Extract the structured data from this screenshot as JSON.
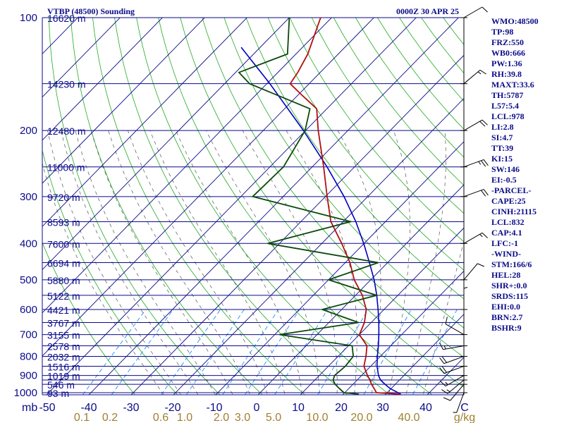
{
  "header": {
    "station": "VTBP (48500) Sounding",
    "time": "0000Z 30 APR 25"
  },
  "indices": [
    "WMO:48500",
    "TP:98",
    "FRZ:550",
    "WB0:666",
    "PW:1.36",
    "RH:39.8",
    "MAXT:33.6",
    "TH:5787",
    "L57:5.4",
    "LCL:978",
    "LI:2.8",
    "SI:4.7",
    "TT:39",
    "KI:15",
    "SW:146",
    "EI:-0.5",
    "-PARCEL-",
    "CAPE:25",
    "CINH:21115",
    "LCL:832",
    "CAP:4.1",
    "LFC:-1",
    "-WIND-",
    "STM:166/6",
    "HEL:28",
    "SHR+:0.0",
    "SRDS:115",
    "EHI:0.0",
    "BRN:2.7",
    "BSHR:9"
  ],
  "colors": {
    "isobar": "#0b0b8a",
    "isotherm": "#0b0b8a",
    "dry_adiabat": "#22aa22",
    "mixing_ratio": "#1e90ff",
    "moist_adiabat": "#555555",
    "temperature": "#b01010",
    "dewpoint": "#0b4a0b",
    "parcel": "#0000c0",
    "text_blue": "#0b0b8a",
    "text_tan": "#a08030"
  },
  "chart_data": {
    "type": "skew-t",
    "pressure_axis_title": "mb",
    "pressure_labels": [
      100,
      200,
      300,
      400,
      500,
      600,
      700,
      800,
      900,
      1000
    ],
    "isobars": [
      100,
      150,
      200,
      250,
      300,
      350,
      400,
      450,
      500,
      550,
      600,
      650,
      700,
      750,
      800,
      850,
      900,
      925,
      950,
      1000
    ],
    "temperature_ticks": [
      "-50",
      "-40",
      "-30",
      "-20",
      "-10",
      "0",
      "10",
      "20",
      "30",
      "40",
      "C"
    ],
    "mixing_ratio_ticks": [
      "0.1",
      "0.2",
      "0.6",
      "1.0",
      "2.0",
      "3.0",
      "5.0",
      "10.0",
      "20.0",
      "40.0",
      "g/kg"
    ],
    "height_labels": [
      {
        "p": 100,
        "label": "16620 m"
      },
      {
        "p": 150,
        "label": "14230 m"
      },
      {
        "p": 200,
        "label": "12480 m"
      },
      {
        "p": 250,
        "label": "11000 m"
      },
      {
        "p": 300,
        "label": "9720 m"
      },
      {
        "p": 350,
        "label": "8593 m"
      },
      {
        "p": 400,
        "label": "7600 m"
      },
      {
        "p": 450,
        "label": "6694 m"
      },
      {
        "p": 500,
        "label": "5880 m"
      },
      {
        "p": 550,
        "label": "5122 m"
      },
      {
        "p": 600,
        "label": "4421 m"
      },
      {
        "p": 650,
        "label": "3767 m"
      },
      {
        "p": 700,
        "label": "3155 m"
      },
      {
        "p": 750,
        "label": "2578 m"
      },
      {
        "p": 800,
        "label": "2032 m"
      },
      {
        "p": 850,
        "label": "1516 m"
      },
      {
        "p": 900,
        "label": "1019 m"
      },
      {
        "p": 950,
        "label": "546 m"
      },
      {
        "p": 1000,
        "label": "93 m"
      }
    ],
    "temperature_profile": [
      [
        1009,
        33.6
      ],
      [
        1000,
        27.5
      ],
      [
        975,
        26.0
      ],
      [
        950,
        24.4
      ],
      [
        925,
        23.0
      ],
      [
        900,
        21.4
      ],
      [
        850,
        18.4
      ],
      [
        800,
        16.6
      ],
      [
        750,
        14.4
      ],
      [
        700,
        10.0
      ],
      [
        650,
        8.4
      ],
      [
        600,
        5.8
      ],
      [
        550,
        1.6
      ],
      [
        500,
        -3.9
      ],
      [
        450,
        -8.9
      ],
      [
        400,
        -15.3
      ],
      [
        350,
        -22.9
      ],
      [
        300,
        -29.6
      ],
      [
        250,
        -37.3
      ],
      [
        200,
        -47.0
      ],
      [
        175,
        -52.4
      ],
      [
        160,
        -59.5
      ],
      [
        150,
        -64.5
      ],
      [
        140,
        -65.3
      ],
      [
        125,
        -67.2
      ],
      [
        100,
        -72.6
      ]
    ],
    "dewpoint_profile": [
      [
        1009,
        23.7
      ],
      [
        1000,
        19.8
      ],
      [
        975,
        17.8
      ],
      [
        950,
        15.8
      ],
      [
        925,
        14.3
      ],
      [
        900,
        13.6
      ],
      [
        850,
        14.0
      ],
      [
        800,
        13.6
      ],
      [
        750,
        10.9
      ],
      [
        700,
        -8.9
      ],
      [
        650,
        7.0
      ],
      [
        600,
        -4.6
      ],
      [
        550,
        5.0
      ],
      [
        500,
        -10.0
      ],
      [
        450,
        -2.2
      ],
      [
        400,
        -32.8
      ],
      [
        350,
        -18.2
      ],
      [
        300,
        -47.2
      ],
      [
        250,
        -46.8
      ],
      [
        200,
        -50.1
      ],
      [
        175,
        -54.0
      ],
      [
        150,
        -74.1
      ],
      [
        140,
        -79.2
      ],
      [
        125,
        -72.0
      ],
      [
        100,
        -80.0
      ]
    ],
    "parcel_profile": [
      [
        1009,
        33.6
      ],
      [
        975,
        29.8
      ],
      [
        950,
        27.6
      ],
      [
        925,
        25.5
      ],
      [
        900,
        24.0
      ],
      [
        850,
        21.5
      ],
      [
        800,
        19.3
      ],
      [
        750,
        17.1
      ],
      [
        700,
        14.6
      ],
      [
        650,
        11.8
      ],
      [
        600,
        8.6
      ],
      [
        550,
        5.0
      ],
      [
        500,
        0.8
      ],
      [
        450,
        -4.3
      ],
      [
        400,
        -10.1
      ],
      [
        350,
        -17.0
      ],
      [
        300,
        -25.6
      ],
      [
        250,
        -36.5
      ],
      [
        200,
        -50.5
      ],
      [
        150,
        -69.3
      ],
      [
        120,
        -84.5
      ]
    ],
    "wind_barbs": [
      {
        "p": 1000,
        "dir": 200,
        "spd": 5
      },
      {
        "p": 950,
        "dir": 220,
        "spd": 10
      },
      {
        "p": 925,
        "dir": 230,
        "spd": 15
      },
      {
        "p": 900,
        "dir": 240,
        "spd": 15
      },
      {
        "p": 850,
        "dir": 250,
        "spd": 20
      },
      {
        "p": 800,
        "dir": 250,
        "spd": 20
      },
      {
        "p": 750,
        "dir": 260,
        "spd": 15
      },
      {
        "p": 700,
        "dir": 300,
        "spd": 10
      },
      {
        "p": 600,
        "dir": 0,
        "spd": 5
      },
      {
        "p": 500,
        "dir": 40,
        "spd": 10
      },
      {
        "p": 400,
        "dir": 60,
        "spd": 15
      },
      {
        "p": 300,
        "dir": 70,
        "spd": 20
      },
      {
        "p": 250,
        "dir": 70,
        "spd": 25
      },
      {
        "p": 200,
        "dir": 60,
        "spd": 20
      },
      {
        "p": 150,
        "dir": 50,
        "spd": 15
      },
      {
        "p": 100,
        "dir": 60,
        "spd": 10
      }
    ]
  }
}
